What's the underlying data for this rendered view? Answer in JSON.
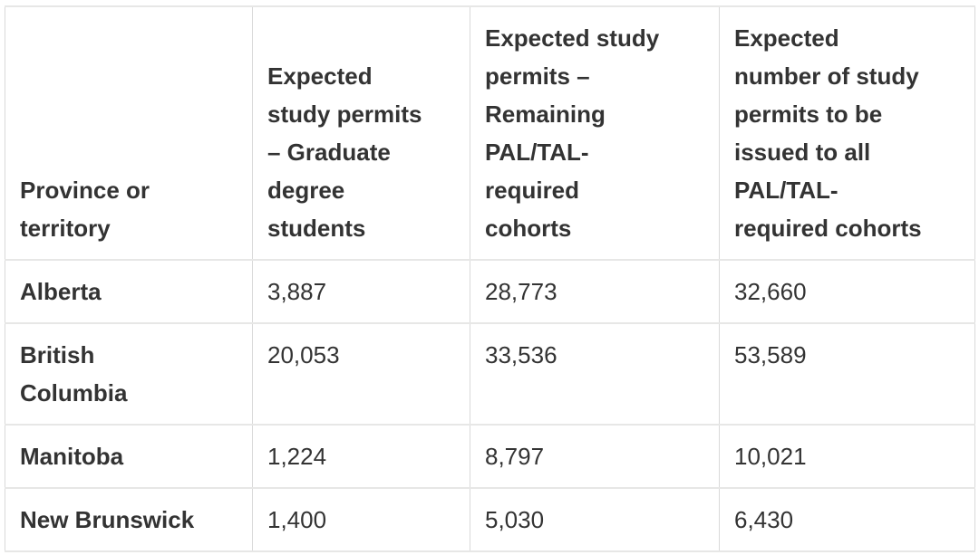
{
  "table": {
    "title_semantic": "Expected study permits by province or territory",
    "colors": {
      "text": "#333333",
      "border_vertical": "#d9d9d9",
      "border_horizontal": "#e7e7e6",
      "background": "#ffffff"
    },
    "columns": [
      {
        "id": "province",
        "label": "Province or\nterritory"
      },
      {
        "id": "grad",
        "label": "Expected\nstudy permits\n– Graduate\ndegree\nstudents"
      },
      {
        "id": "remaining",
        "label": "Expected study\npermits –\nRemaining\nPAL/TAL-\nrequired\ncohorts"
      },
      {
        "id": "total",
        "label": "Expected\nnumber of study\npermits to be\nissued to all\nPAL/TAL-\nrequired cohorts"
      }
    ],
    "rows": [
      {
        "province": "Alberta",
        "values": [
          "3,887",
          "28,773",
          "32,660"
        ]
      },
      {
        "province": "British\nColumbia",
        "values": [
          "20,053",
          "33,536",
          "53,589"
        ]
      },
      {
        "province": "Manitoba",
        "values": [
          "1,224",
          "8,797",
          "10,021"
        ]
      },
      {
        "province": "New Brunswick",
        "values": [
          "1,400",
          "5,030",
          "6,430"
        ]
      }
    ]
  }
}
